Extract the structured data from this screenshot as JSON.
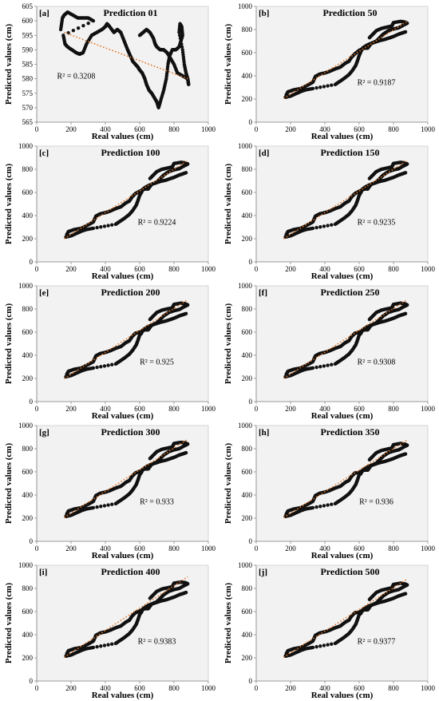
{
  "chart_data": [
    {
      "type": "scatter",
      "panel": "[a]",
      "title": "Prediction 01",
      "xlabel": "Real values (cm)",
      "ylabel": "Predicted values (cm)",
      "r2": "R² = 0.3208",
      "xlim": [
        0,
        1000
      ],
      "ylim": [
        565,
        605
      ],
      "xticks": [
        0,
        200,
        400,
        600,
        800,
        1000
      ],
      "yticks": [
        565,
        570,
        575,
        580,
        585,
        590,
        595,
        600,
        605
      ],
      "series_kind": "p01",
      "trendline": {
        "x": [
          160,
          880
        ],
        "y": [
          596,
          580
        ]
      }
    },
    {
      "type": "scatter",
      "panel": "[b]",
      "title": "Prediction 50",
      "xlabel": "Real values (cm)",
      "ylabel": "Predicted values (cm)",
      "r2": "R² = 0.9187",
      "xlim": [
        0,
        1000
      ],
      "ylim": [
        0,
        1000
      ],
      "xticks": [
        0,
        200,
        400,
        600,
        800,
        1000
      ],
      "yticks": [
        0,
        200,
        400,
        600,
        800,
        1000
      ],
      "series_kind": "std",
      "shift": 0,
      "trendline": {
        "x": [
          160,
          880
        ],
        "y": [
          205,
          870
        ]
      }
    },
    {
      "type": "scatter",
      "panel": "[c]",
      "title": "Prediction 100",
      "xlabel": "Real values (cm)",
      "ylabel": "Predicted values (cm)",
      "r2": "R² = 0.9224",
      "xlim": [
        0,
        1000
      ],
      "ylim": [
        0,
        1000
      ],
      "xticks": [
        0,
        200,
        400,
        600,
        800,
        1000
      ],
      "yticks": [
        0,
        200,
        400,
        600,
        800,
        1000
      ],
      "series_kind": "std",
      "shift": -10,
      "trendline": {
        "x": [
          160,
          880
        ],
        "y": [
          200,
          875
        ]
      }
    },
    {
      "type": "scatter",
      "panel": "[d]",
      "title": "Prediction 150",
      "xlabel": "Real values (cm)",
      "ylabel": "Predicted values (cm)",
      "r2": "R² = 0.9235",
      "xlim": [
        0,
        1000
      ],
      "ylim": [
        0,
        1000
      ],
      "xticks": [
        0,
        200,
        400,
        600,
        800,
        1000
      ],
      "yticks": [
        0,
        200,
        400,
        600,
        800,
        1000
      ],
      "series_kind": "std",
      "shift": -10,
      "trendline": {
        "x": [
          160,
          880
        ],
        "y": [
          200,
          875
        ]
      }
    },
    {
      "type": "scatter",
      "panel": "[e]",
      "title": "Prediction 200",
      "xlabel": "Real values (cm)",
      "ylabel": "Predicted values (cm)",
      "r2": "R² = 0.925",
      "xlim": [
        0,
        1000
      ],
      "ylim": [
        0,
        1000
      ],
      "xticks": [
        0,
        200,
        400,
        600,
        800,
        1000
      ],
      "yticks": [
        0,
        200,
        400,
        600,
        800,
        1000
      ],
      "series_kind": "std",
      "shift": -20,
      "trendline": {
        "x": [
          160,
          880
        ],
        "y": [
          198,
          880
        ]
      }
    },
    {
      "type": "scatter",
      "panel": "[f]",
      "title": "Prediction 250",
      "xlabel": "Real values (cm)",
      "ylabel": "Predicted values (cm)",
      "r2": "R² = 0.9308",
      "xlim": [
        0,
        1000
      ],
      "ylim": [
        0,
        1000
      ],
      "xticks": [
        0,
        200,
        400,
        600,
        800,
        1000
      ],
      "yticks": [
        0,
        200,
        400,
        600,
        800,
        1000
      ],
      "series_kind": "std",
      "shift": -20,
      "trendline": {
        "x": [
          160,
          880
        ],
        "y": [
          200,
          880
        ]
      }
    },
    {
      "type": "scatter",
      "panel": "[g]",
      "title": "Prediction 300",
      "xlabel": "Real values (cm)",
      "ylabel": "Predicted values (cm)",
      "r2": "R² = 0.933",
      "xlim": [
        0,
        1000
      ],
      "ylim": [
        0,
        1000
      ],
      "xticks": [
        0,
        200,
        400,
        600,
        800,
        1000
      ],
      "yticks": [
        0,
        200,
        400,
        600,
        800,
        1000
      ],
      "series_kind": "std",
      "shift": -15,
      "trendline": {
        "x": [
          160,
          880
        ],
        "y": [
          205,
          880
        ]
      }
    },
    {
      "type": "scatter",
      "panel": "[h]",
      "title": "Prediction 350",
      "xlabel": "Real values (cm)",
      "ylabel": "Predicted values (cm)",
      "r2": "R² = 0.936",
      "xlim": [
        0,
        1000
      ],
      "ylim": [
        0,
        1000
      ],
      "xticks": [
        0,
        200,
        400,
        600,
        800,
        1000
      ],
      "yticks": [
        0,
        200,
        400,
        600,
        800,
        1000
      ],
      "series_kind": "std",
      "shift": -25,
      "trendline": {
        "x": [
          160,
          880
        ],
        "y": [
          205,
          875
        ]
      }
    },
    {
      "type": "scatter",
      "panel": "[i]",
      "title": "Prediction 400",
      "xlabel": "Real values (cm)",
      "ylabel": "Predicted values (cm)",
      "r2": "R² = 0.9383",
      "xlim": [
        0,
        1000
      ],
      "ylim": [
        0,
        1000
      ],
      "xticks": [
        0,
        200,
        400,
        600,
        800,
        1000
      ],
      "yticks": [
        0,
        200,
        400,
        600,
        800,
        1000
      ],
      "series_kind": "std",
      "shift": -15,
      "trendline": {
        "x": [
          160,
          880
        ],
        "y": [
          205,
          900
        ]
      }
    },
    {
      "type": "scatter",
      "panel": "[j]",
      "title": "Prediction 500",
      "xlabel": "Real values (cm)",
      "ylabel": "Predicted values (cm)",
      "r2": "R² = 0.9377",
      "xlim": [
        0,
        1000
      ],
      "ylim": [
        0,
        1000
      ],
      "xticks": [
        0,
        200,
        400,
        600,
        800,
        1000
      ],
      "yticks": [
        0,
        200,
        400,
        600,
        800,
        1000
      ],
      "series_kind": "std",
      "shift": -25,
      "trendline": {
        "x": [
          160,
          880
        ],
        "y": [
          205,
          880
        ]
      }
    }
  ],
  "style": {
    "point_color": "#111111",
    "trend_color": "#e0701e",
    "plot_bg": "#f2f2f2",
    "axis_color": "#888888",
    "grid": false,
    "legend": "none"
  },
  "series_templates": {
    "std": {
      "upper": [
        [
          175,
          235
        ],
        [
          185,
          262
        ],
        [
          220,
          280
        ],
        [
          260,
          290
        ],
        [
          300,
          320
        ],
        [
          330,
          345
        ],
        [
          345,
          395
        ],
        [
          370,
          415
        ],
        [
          400,
          425
        ],
        [
          430,
          440
        ],
        [
          460,
          460
        ],
        [
          490,
          475
        ],
        [
          520,
          510
        ],
        [
          540,
          525
        ],
        [
          555,
          560
        ],
        [
          575,
          590
        ],
        [
          600,
          620
        ],
        [
          630,
          640
        ],
        [
          650,
          640
        ],
        [
          670,
          680
        ],
        [
          700,
          700
        ],
        [
          720,
          730
        ],
        [
          740,
          760
        ],
        [
          770,
          790
        ],
        [
          800,
          805
        ],
        [
          830,
          815
        ],
        [
          860,
          840
        ],
        [
          880,
          855
        ],
        [
          865,
          865
        ],
        [
          840,
          870
        ],
        [
          800,
          860
        ],
        [
          790,
          830
        ],
        [
          760,
          820
        ],
        [
          730,
          810
        ],
        [
          700,
          790
        ],
        [
          680,
          760
        ],
        [
          660,
          730
        ]
      ],
      "lower": [
        [
          170,
          215
        ],
        [
          200,
          225
        ],
        [
          230,
          245
        ],
        [
          260,
          265
        ],
        [
          290,
          280
        ],
        [
          330,
          290
        ],
        [
          460,
          325
        ],
        [
          480,
          345
        ],
        [
          510,
          375
        ],
        [
          540,
          410
        ],
        [
          560,
          445
        ],
        [
          580,
          490
        ],
        [
          590,
          530
        ],
        [
          600,
          575
        ],
        [
          610,
          610
        ],
        [
          620,
          640
        ],
        [
          640,
          660
        ],
        [
          660,
          675
        ],
        [
          690,
          690
        ],
        [
          720,
          705
        ],
        [
          750,
          715
        ],
        [
          780,
          730
        ],
        [
          800,
          740
        ],
        [
          830,
          760
        ],
        [
          850,
          770
        ],
        [
          870,
          780
        ]
      ]
    },
    "p01": [
      [
        140,
        597
      ],
      [
        150,
        601
      ],
      [
        160,
        602
      ],
      [
        180,
        603
      ],
      [
        210,
        602
      ],
      [
        240,
        601
      ],
      [
        270,
        601
      ],
      [
        300,
        601
      ],
      [
        330,
        600
      ],
      [
        155,
        595
      ],
      [
        165,
        592
      ],
      [
        180,
        591
      ],
      [
        205,
        590
      ],
      [
        230,
        589
      ],
      [
        250,
        588.5
      ],
      [
        270,
        589
      ],
      [
        290,
        592
      ],
      [
        320,
        595
      ],
      [
        350,
        596
      ],
      [
        380,
        597
      ],
      [
        400,
        598
      ],
      [
        410,
        599
      ],
      [
        425,
        598
      ],
      [
        450,
        596
      ],
      [
        470,
        597
      ],
      [
        490,
        596
      ],
      [
        510,
        593
      ],
      [
        530,
        590
      ],
      [
        545,
        588
      ],
      [
        560,
        586
      ],
      [
        575,
        585
      ],
      [
        590,
        584
      ],
      [
        600,
        583
      ],
      [
        615,
        582
      ],
      [
        630,
        580
      ],
      [
        640,
        578
      ],
      [
        655,
        576
      ],
      [
        670,
        575
      ],
      [
        690,
        573
      ],
      [
        700,
        572
      ],
      [
        710,
        570
      ],
      [
        720,
        572
      ],
      [
        740,
        576
      ],
      [
        755,
        580
      ],
      [
        765,
        585
      ],
      [
        775,
        588
      ],
      [
        790,
        590
      ],
      [
        810,
        590
      ],
      [
        830,
        591
      ],
      [
        840,
        593
      ],
      [
        850,
        595
      ],
      [
        845,
        598
      ],
      [
        835,
        599
      ],
      [
        830,
        596
      ],
      [
        850,
        590
      ],
      [
        860,
        585
      ],
      [
        870,
        582
      ],
      [
        880,
        580
      ],
      [
        885,
        578
      ],
      [
        880,
        580
      ],
      [
        850,
        581
      ],
      [
        820,
        582
      ],
      [
        800,
        585
      ],
      [
        780,
        587
      ],
      [
        760,
        589
      ],
      [
        740,
        590
      ],
      [
        720,
        590
      ],
      [
        700,
        591
      ],
      [
        690,
        592
      ],
      [
        680,
        594
      ],
      [
        660,
        596
      ],
      [
        640,
        597
      ],
      [
        620,
        596
      ],
      [
        600,
        595
      ]
    ]
  }
}
